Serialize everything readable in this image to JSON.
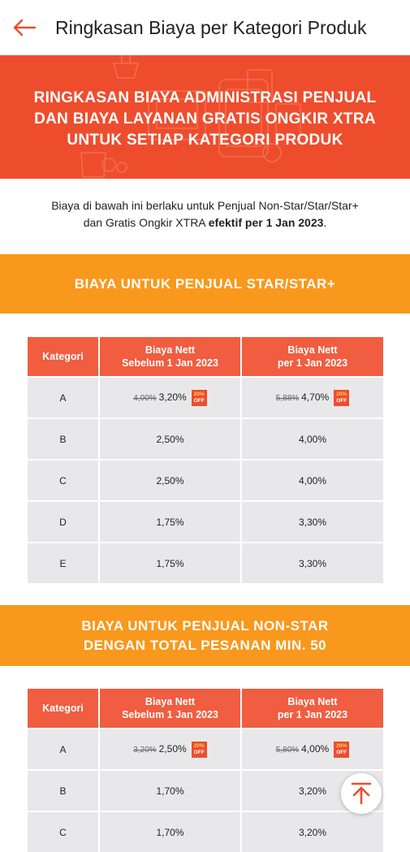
{
  "header": {
    "title": "Ringkasan Biaya per Kategori Produk"
  },
  "hero": {
    "line1": "RINGKASAN BIAYA ADMINISTRASI PENJUAL",
    "line2": "DAN BIAYA LAYANAN GRATIS ONGKIR XTRA",
    "line3": "UNTUK SETIAP KATEGORI PRODUK"
  },
  "intro": {
    "line1": "Biaya di bawah ini berlaku untuk Penjual Non-Star/Star/Star+",
    "line2_prefix": "dan Gratis Ongkir XTRA ",
    "line2_bold": "efektif per 1 Jan 2023",
    "line2_suffix": "."
  },
  "section1": {
    "title": "BIAYA UNTUK PENJUAL STAR/STAR+",
    "headers": {
      "kategori": "Kategori",
      "before_l1": "Biaya Nett",
      "before_l2": "Sebelum 1 Jan 2023",
      "after_l1": "Biaya Nett",
      "after_l2": "per 1 Jan 2023"
    },
    "rows": [
      {
        "kategori": "A",
        "before_old": "4,00%",
        "before": "3,20%",
        "after_old": "5,88%",
        "after": "4,70%"
      },
      {
        "kategori": "B",
        "before": "2,50%",
        "after": "4,00%"
      },
      {
        "kategori": "C",
        "before": "2,50%",
        "after": "4,00%"
      },
      {
        "kategori": "D",
        "before": "1,75%",
        "after": "3,30%"
      },
      {
        "kategori": "E",
        "before": "1,75%",
        "after": "3,30%"
      }
    ]
  },
  "section2": {
    "title_l1": "BIAYA UNTUK PENJUAL NON-STAR",
    "title_l2": "DENGAN TOTAL PESANAN MIN. 50",
    "headers": {
      "kategori": "Kategori",
      "before_l1": "Biaya Nett",
      "before_l2": "Sebelum 1 Jan 2023",
      "after_l1": "Biaya Nett",
      "after_l2": "per 1 Jan 2023"
    },
    "rows": [
      {
        "kategori": "A",
        "before_old": "3,20%",
        "before": "2,50%",
        "after_old": "5,80%",
        "after": "4,00%"
      },
      {
        "kategori": "B",
        "before": "1,70%",
        "after": "3,20%"
      },
      {
        "kategori": "C",
        "before": "1,70%",
        "after": "3,20%"
      }
    ]
  },
  "badge": {
    "top": "20%",
    "bottom": "OFF"
  },
  "colors": {
    "brand": "#ee4d2d",
    "banner": "#f8981d",
    "table_header": "#f05d40",
    "cell": "#e8e8ea"
  },
  "icons": {
    "back": "arrow-left-icon",
    "scroll_top": "arrow-up-to-top-icon"
  }
}
